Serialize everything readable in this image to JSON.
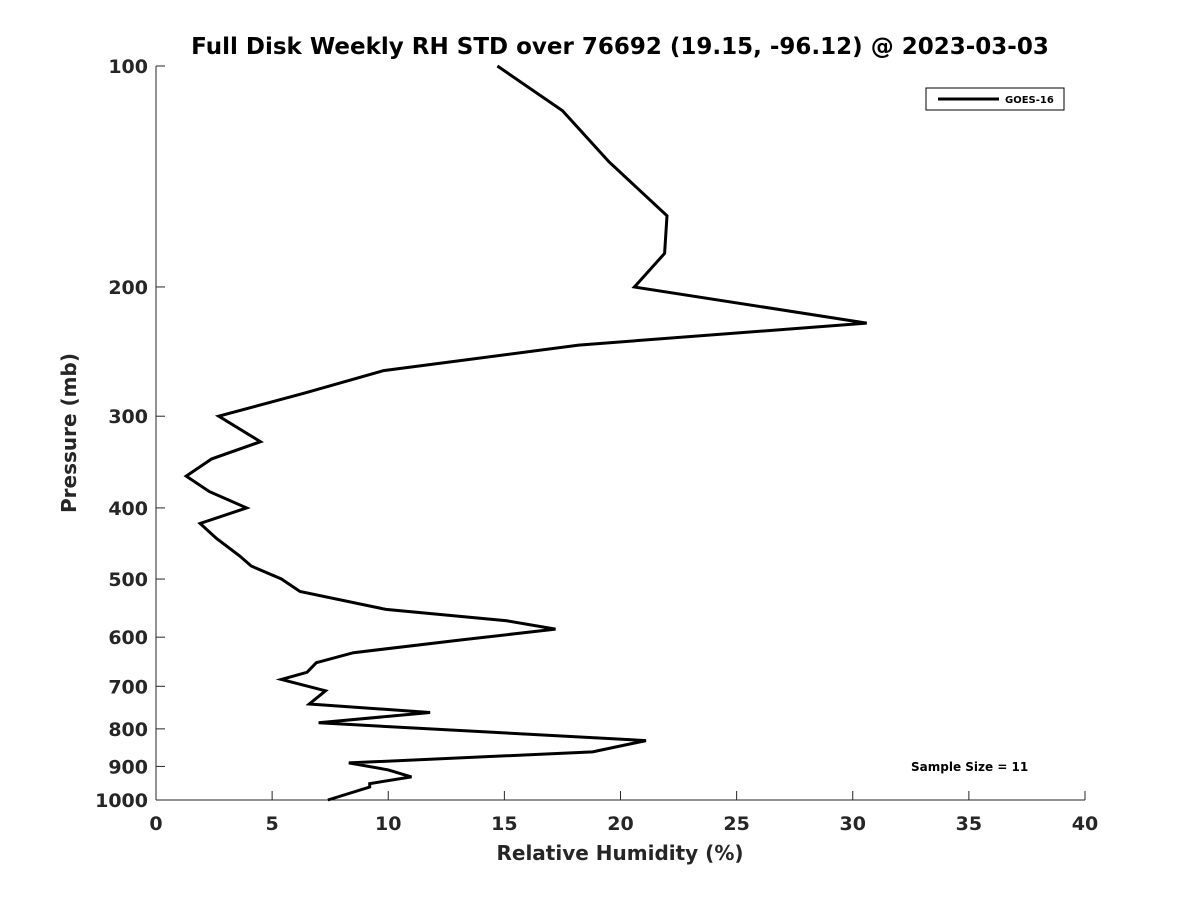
{
  "chart_data": {
    "type": "line",
    "title": "Full Disk Weekly RH STD over 76692 (19.15, -96.12) @ 2023-03-03",
    "xlabel": "Relative Humidity (%)",
    "ylabel": "Pressure (mb)",
    "xlim": [
      0,
      40
    ],
    "ylim": [
      100,
      1000
    ],
    "y_scale": "log",
    "y_reversed": true,
    "x_ticks": [
      "0",
      "5",
      "10",
      "15",
      "20",
      "25",
      "30",
      "35",
      "40"
    ],
    "y_ticks": [
      "100",
      "200",
      "300",
      "400",
      "500",
      "600",
      "700",
      "800",
      "900",
      "1000"
    ],
    "grid": false,
    "legend_position": "top-right",
    "annotation": "Sample Size = 11",
    "series": [
      {
        "name": "GOES-16",
        "color": "#000000",
        "x": [
          14.7,
          17.5,
          19.5,
          22.0,
          21.9,
          20.6,
          30.6,
          18.2,
          9.8,
          6.4,
          2.7,
          4.5,
          2.4,
          1.3,
          2.3,
          3.9,
          1.9,
          2.6,
          3.6,
          4.1,
          5.4,
          6.2,
          9.9,
          15.1,
          17.2,
          13.2,
          8.5,
          6.9,
          6.5,
          5.4,
          7.3,
          6.6,
          11.8,
          7.0,
          21.1,
          18.8,
          8.3,
          10.0,
          11.0,
          9.2,
          9.2,
          7.4
        ],
        "y": [
          100,
          115,
          135,
          160,
          180,
          200,
          224,
          240,
          260,
          279,
          300,
          325,
          343,
          362,
          380,
          400,
          420,
          440,
          465,
          480,
          500,
          520,
          550,
          570,
          585,
          605,
          630,
          650,
          670,
          685,
          710,
          740,
          760,
          785,
          830,
          860,
          890,
          910,
          930,
          950,
          960,
          1000
        ]
      }
    ]
  }
}
